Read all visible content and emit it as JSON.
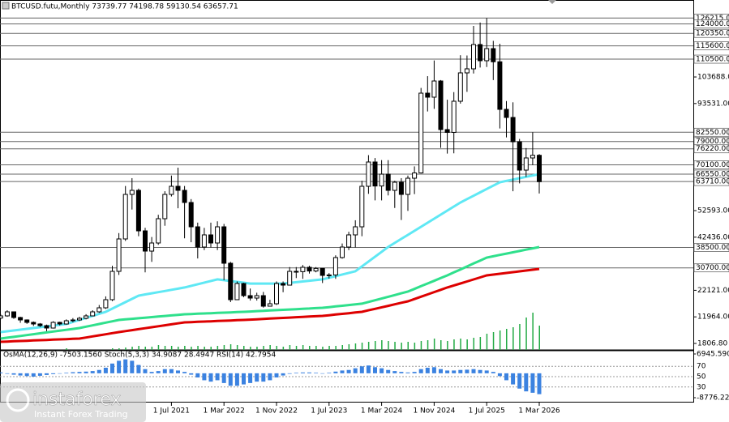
{
  "chart_data": {
    "type": "candlestick",
    "title": "BTCUSD.futu,Monthly  73739.77 74198.78 59130.54 63657.71",
    "categories": [
      "1 May 2019",
      "1 Jun 2019",
      "1 Jul 2019",
      "1 Aug 2019",
      "1 Sep 2019",
      "1 Oct 2019",
      "1 Nov 2019",
      "1 Dec 2019",
      "1 Jan 2020",
      "1 Feb 2020",
      "1 Mar 2020",
      "1 Apr 2020",
      "1 May 2020",
      "1 Jun 2020",
      "1 Jul 2020",
      "1 Aug 2020",
      "1 Sep 2020",
      "1 Oct 2020",
      "1 Nov 2020",
      "1 Dec 2020",
      "1 Jan 2021",
      "1 Feb 2021",
      "1 Mar 2021",
      "1 Apr 2021",
      "1 May 2021",
      "1 Jun 2021",
      "1 Jul 2021",
      "1 Aug 2021",
      "1 Sep 2021",
      "1 Oct 2021",
      "1 Nov 2021",
      "1 Dec 2021",
      "1 Jan 2022",
      "1 Feb 2022",
      "1 Mar 2022",
      "1 Apr 2022",
      "1 May 2022",
      "1 Jun 2022",
      "1 Jul 2022",
      "1 Aug 2022",
      "1 Sep 2022",
      "1 Oct 2022",
      "1 Nov 2022",
      "1 Dec 2022",
      "1 Jan 2023",
      "1 Feb 2023",
      "1 Mar 2023",
      "1 Apr 2023",
      "1 May 2023",
      "1 Jun 2023",
      "1 Jul 2023",
      "1 Aug 2023",
      "1 Sep 2023",
      "1 Oct 2023",
      "1 Nov 2023",
      "1 Dec 2023",
      "1 Jan 2024",
      "1 Feb 2024",
      "1 Mar 2024",
      "1 Apr 2024",
      "1 May 2024",
      "1 Jun 2024",
      "1 Jul 2024",
      "1 Aug 2024",
      "1 Sep 2024",
      "1 Oct 2024",
      "1 Nov 2024",
      "1 Dec 2024",
      "1 Jan 2025",
      "1 Feb 2025",
      "1 Mar 2025",
      "1 Apr 2025",
      "1 May 2025",
      "1 Jun 2025",
      "1 Jul 2025",
      "1 Aug 2025",
      "1 Sep 2025",
      "1 Oct 2025",
      "1 Nov 2025",
      "1 Dec 2025",
      "1 Jan 2026",
      "1 Feb 2026",
      "1 Mar 2026"
    ],
    "open": [
      11500,
      12340,
      13890,
      11720,
      10790,
      9860,
      9240,
      8620,
      7690,
      9860,
      9240,
      10480,
      10790,
      11410,
      12340,
      13890,
      15430,
      18530,
      29370,
      41760,
      58790,
      60340,
      44850,
      37110,
      40210,
      49500,
      58790,
      61890,
      60340,
      55700,
      46400,
      38660,
      43310,
      40210,
      46400,
      32470,
      18530,
      24720,
      20080,
      19150,
      20080,
      16050,
      16980,
      24720,
      24100,
      29370,
      29250,
      30920,
      29500,
      30500,
      27820,
      28000,
      34640,
      38660,
      43310,
      46400,
      61890,
      71180,
      62000,
      66530,
      60340,
      63440,
      58790,
      64980,
      67000,
      97500,
      95960,
      102150,
      83570,
      82500,
      94410,
      105250,
      106800,
      116090,
      109900,
      114540,
      109500,
      91310,
      88210,
      78920,
      68080,
      72730,
      73739.77
    ],
    "high": [
      13000,
      14500,
      14000,
      12000,
      11000,
      10200,
      9600,
      9000,
      10300,
      10100,
      11000,
      11500,
      12000,
      13000,
      14500,
      16500,
      19800,
      31500,
      44000,
      62000,
      65000,
      61000,
      46000,
      42500,
      51000,
      60000,
      66000,
      69000,
      62000,
      57000,
      48000,
      46000,
      48000,
      48500,
      47500,
      33000,
      25500,
      25000,
      22800,
      21200,
      21500,
      18500,
      25500,
      25500,
      31000,
      31000,
      31800,
      31500,
      31000,
      30500,
      28700,
      35500,
      40000,
      44500,
      48900,
      64000,
      73800,
      72700,
      71900,
      71900,
      64000,
      65000,
      66000,
      69500,
      99500,
      104000,
      110000,
      102500,
      95000,
      97900,
      112000,
      111900,
      123200,
      124500,
      126215,
      117500,
      116400,
      94500,
      94000,
      80000,
      76500,
      82550,
      74198.78
    ],
    "low": [
      11000,
      12000,
      11200,
      9700,
      9300,
      8500,
      8100,
      6500,
      7500,
      8700,
      9000,
      9900,
      10400,
      11000,
      12300,
      13500,
      15000,
      18000,
      28000,
      41000,
      53000,
      42800,
      29000,
      33000,
      39500,
      46800,
      58000,
      53500,
      42000,
      40500,
      34300,
      37500,
      38500,
      37500,
      26000,
      17600,
      18800,
      19500,
      18200,
      18200,
      15500,
      16300,
      16500,
      21400,
      24800,
      26800,
      26500,
      28500,
      29000,
      24900,
      26600,
      26500,
      34200,
      37500,
      38500,
      42800,
      59000,
      56500,
      56500,
      58400,
      53600,
      49000,
      52500,
      58900,
      66800,
      90500,
      91500,
      76600,
      74400,
      74500,
      93500,
      98000,
      105000,
      107300,
      107500,
      102500,
      84000,
      80600,
      60000,
      63000,
      65500,
      70000,
      59130.54
    ],
    "close": [
      12340,
      13890,
      11720,
      10790,
      9860,
      9240,
      8620,
      7690,
      9860,
      9240,
      10480,
      10790,
      11410,
      12340,
      13890,
      15430,
      18530,
      29370,
      41760,
      58790,
      60340,
      44850,
      37110,
      40210,
      49500,
      58790,
      61890,
      60340,
      55700,
      46400,
      38660,
      43310,
      40210,
      46400,
      32470,
      18530,
      24720,
      20080,
      19150,
      20080,
      16050,
      16980,
      24720,
      24100,
      29370,
      29250,
      30920,
      29500,
      30500,
      27820,
      28000,
      34640,
      38660,
      43310,
      46400,
      61890,
      71180,
      62000,
      66530,
      60340,
      63440,
      58790,
      64980,
      67000,
      97500,
      95960,
      102150,
      83570,
      82500,
      94410,
      105250,
      106800,
      116090,
      109900,
      114540,
      109500,
      91310,
      88210,
      78920,
      68080,
      72730,
      73739.77,
      63657.71
    ],
    "volume": [
      1,
      1,
      1,
      1,
      1,
      1,
      1,
      1,
      1,
      1,
      2,
      1,
      1,
      1,
      1,
      1,
      1,
      2,
      2,
      3,
      4,
      5,
      4,
      4,
      6,
      5,
      5,
      4,
      5,
      4,
      5,
      4,
      4,
      5,
      6,
      7,
      6,
      5,
      4,
      4,
      5,
      6,
      5,
      4,
      6,
      5,
      6,
      5,
      5,
      4,
      5,
      5,
      6,
      7,
      8,
      9,
      10,
      11,
      12,
      11,
      10,
      9,
      10,
      9,
      11,
      12,
      14,
      12,
      11,
      13,
      14,
      13,
      15,
      16,
      20,
      22,
      24,
      26,
      28,
      32,
      40,
      46,
      30
    ],
    "moving_averages": [
      {
        "color": "#5fe8f4",
        "values": [
          6140,
          6450,
          6760,
          7070,
          7380,
          7690,
          8000,
          8310,
          8620,
          8930,
          9240,
          10020,
          10790,
          11570,
          12350,
          13120,
          13900,
          15140,
          16370,
          17610,
          18840,
          20080,
          20530,
          20970,
          21420,
          21860,
          22310,
          22750,
          23200,
          23820,
          24440,
          25060,
          25680,
          26300,
          25980,
          25660,
          25340,
          25020,
          24700,
          24700,
          24700,
          24700,
          24700,
          24700,
          24970,
          25230,
          25500,
          25770,
          26030,
          26300,
          26920,
          27540,
          28160,
          28780,
          29400,
          31260,
          33120,
          34980,
          36840,
          38700,
          40240,
          41780,
          43320,
          44860,
          46400,
          47950,
          49500,
          51050,
          52600,
          54150,
          55700,
          56990,
          58280,
          59570,
          60860,
          62150,
          63440,
          63960,
          64470,
          64990,
          65500,
          66020,
          66530
        ]
      },
      {
        "color": "#2fe08c",
        "values": [
          3660,
          4000,
          4330,
          4670,
          5000,
          5340,
          5680,
          6010,
          6350,
          6680,
          7020,
          7350,
          7690,
          8210,
          8720,
          9240,
          9760,
          10270,
          10790,
          11010,
          11220,
          11440,
          11650,
          11870,
          12090,
          12300,
          12520,
          12730,
          12950,
          13050,
          13160,
          13260,
          13370,
          13470,
          13580,
          13680,
          13790,
          13890,
          14020,
          14150,
          14270,
          14400,
          14530,
          14660,
          14790,
          14920,
          15050,
          15170,
          15300,
          15430,
          15690,
          15950,
          16220,
          16480,
          16740,
          17000,
          17660,
          18320,
          18980,
          19650,
          20310,
          20970,
          21630,
          22660,
          23690,
          24720,
          25760,
          26790,
          27820,
          28960,
          30090,
          31230,
          32370,
          33500,
          34640,
          35140,
          35650,
          36150,
          36650,
          37150,
          37660,
          38160,
          38660
        ]
      },
      {
        "color": "#dd0000",
        "values": [
          2430,
          2530,
          2630,
          2740,
          2840,
          2940,
          3050,
          3150,
          3250,
          3350,
          3460,
          3560,
          3660,
          4070,
          4490,
          4900,
          5310,
          5730,
          6140,
          6510,
          6880,
          7260,
          7630,
          8000,
          8370,
          8740,
          9120,
          9490,
          9860,
          9960,
          10070,
          10170,
          10270,
          10380,
          10480,
          10580,
          10690,
          10790,
          10920,
          11050,
          11180,
          11310,
          11440,
          11570,
          11700,
          11830,
          11960,
          12080,
          12210,
          12340,
          12600,
          12860,
          13120,
          13370,
          13630,
          13890,
          14460,
          15040,
          15610,
          16190,
          16760,
          17340,
          17910,
          18790,
          19670,
          20550,
          21440,
          22320,
          23200,
          23970,
          24740,
          25510,
          26280,
          27050,
          27820,
          28130,
          28440,
          28750,
          29060,
          29370,
          29680,
          29990,
          30300
        ]
      }
    ],
    "ylim": [
      -670,
      132500
    ],
    "yticks": [
      {
        "value": 103688,
        "label": "103688.00"
      },
      {
        "value": 93531,
        "label": "93531.00"
      },
      {
        "value": 52593,
        "label": "52593.00"
      },
      {
        "value": 42436,
        "label": "42436.00"
      },
      {
        "value": 22121,
        "label": "22121.00"
      },
      {
        "value": 11964,
        "label": "11964.00"
      },
      {
        "value": 1806.8,
        "label": "1806.80"
      }
    ],
    "levels": [
      {
        "value": 126215,
        "label": "126215.00"
      },
      {
        "value": 124000,
        "label": "124000.00"
      },
      {
        "value": 120350,
        "label": "120350.00"
      },
      {
        "value": 115600,
        "label": "115600.00"
      },
      {
        "value": 110500,
        "label": "110500.00"
      },
      {
        "value": 82550,
        "label": "82550.00"
      },
      {
        "value": 79000,
        "label": "79000.00"
      },
      {
        "value": 76220,
        "label": "76220.00"
      },
      {
        "value": 70100,
        "label": "70100.00"
      },
      {
        "value": 66550,
        "label": "66550.00"
      },
      {
        "value": 63710,
        "label": "63710.00"
      },
      {
        "value": 38500,
        "label": "38500.00"
      },
      {
        "value": 30700,
        "label": "30700.00"
      }
    ],
    "xticks": [
      "1 Jul 2021",
      "1 Mar 2022",
      "1 Nov 2022",
      "1 Jul 2023",
      "1 Mar 2024",
      "1 Nov 2024",
      "1 Jul 2025",
      "1 Mar 2026"
    ],
    "indicator_title": "OsMA(12,26,9) -7503.1560  Stoch(5,3,3) 34.9087 28.4947  RSI(14) 42.7954",
    "osma": {
      "color": "#3b82e0",
      "ylim": [
        -8776.229,
        6945.5903
      ],
      "yticks": [
        6945.5903,
        -8776.229
      ],
      "values": [
        300,
        -200,
        -500,
        -800,
        -1000,
        -1200,
        -900,
        -600,
        -300,
        0,
        200,
        400,
        500,
        600,
        800,
        1200,
        2000,
        3500,
        4500,
        5000,
        4500,
        3000,
        1500,
        500,
        800,
        1500,
        1500,
        1000,
        500,
        -500,
        -1500,
        -2500,
        -3000,
        -2500,
        -3500,
        -4500,
        -4500,
        -4000,
        -3500,
        -3000,
        -3000,
        -2500,
        -1500,
        -800,
        -200,
        200,
        300,
        300,
        200,
        0,
        200,
        600,
        1000,
        1200,
        1800,
        2500,
        2800,
        2200,
        1800,
        1200,
        800,
        500,
        300,
        500,
        1500,
        2000,
        2200,
        1500,
        1000,
        1000,
        1200,
        1300,
        1500,
        1200,
        1000,
        500,
        -1000,
        -2500,
        -4000,
        -5500,
        -6500,
        -7000,
        -7503.156
      ]
    },
    "stoch": {
      "ylim": [
        0,
        100
      ],
      "levels": [
        70,
        50,
        30
      ]
    }
  },
  "watermark": {
    "brand": "instaforex",
    "tagline": "Instant Forex Trading"
  }
}
